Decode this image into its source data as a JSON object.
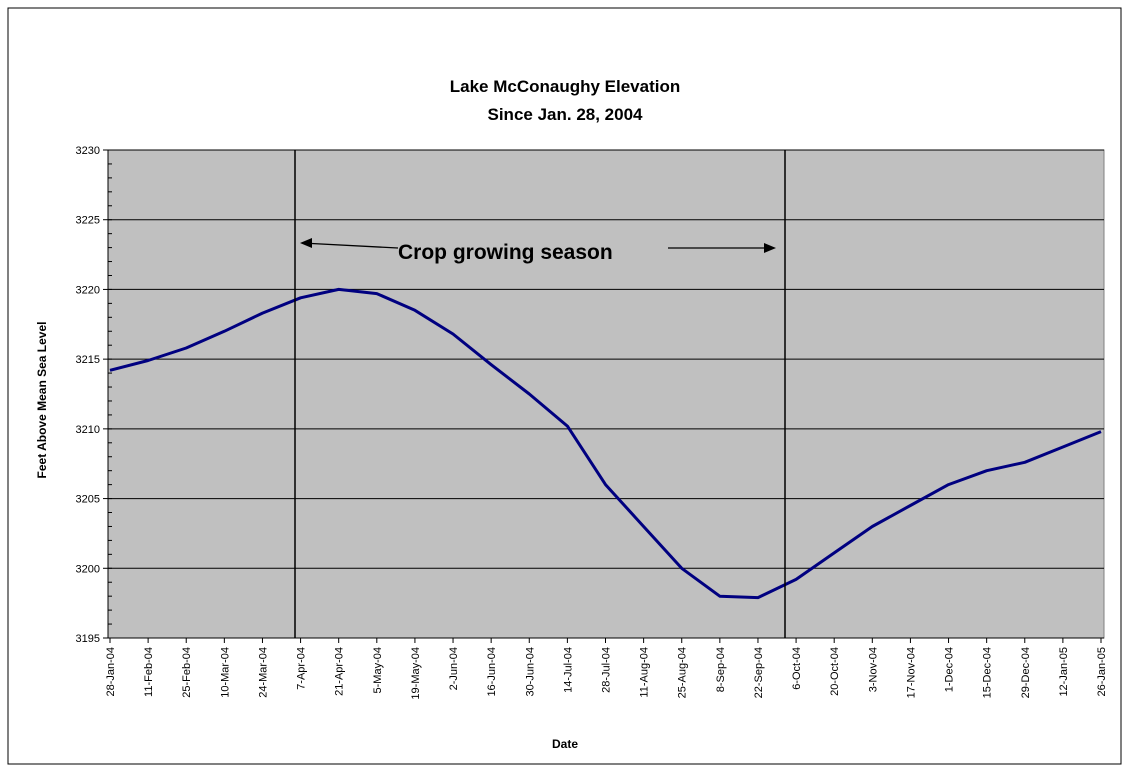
{
  "chart_data": {
    "type": "line",
    "title": "Lake McConaughy Elevation",
    "subtitle": "Since Jan. 28, 2004",
    "x_label": "Date",
    "y_label": "Feet Above Mean Sea Level",
    "annotation": "Crop growing season",
    "categories": [
      "28-Jan-04",
      "11-Feb-04",
      "25-Feb-04",
      "10-Mar-04",
      "24-Mar-04",
      "7-Apr-04",
      "21-Apr-04",
      "5-May-04",
      "19-May-04",
      "2-Jun-04",
      "16-Jun-04",
      "30-Jun-04",
      "14-Jul-04",
      "28-Jul-04",
      "11-Aug-04",
      "25-Aug-04",
      "8-Sep-04",
      "22-Sep-04",
      "6-Oct-04",
      "20-Oct-04",
      "3-Nov-04",
      "17-Nov-04",
      "1-Dec-04",
      "15-Dec-04",
      "29-Dec-04",
      "12-Jan-05",
      "26-Jan-05"
    ],
    "values": [
      3214.2,
      3214.9,
      3215.8,
      3217.0,
      3218.3,
      3219.4,
      3220.0,
      3219.7,
      3218.5,
      3216.8,
      3214.6,
      3212.5,
      3210.2,
      3206.0,
      3203.0,
      3200.0,
      3198.0,
      3197.9,
      3199.2,
      3201.1,
      3203.0,
      3204.5,
      3206.0,
      3207.0,
      3207.6,
      3208.7,
      3209.8
    ],
    "color": "#000080",
    "ylim": [
      3195,
      3230
    ],
    "yticks": [
      3195,
      3200,
      3205,
      3210,
      3215,
      3220,
      3225,
      3230
    ],
    "grid": true
  }
}
